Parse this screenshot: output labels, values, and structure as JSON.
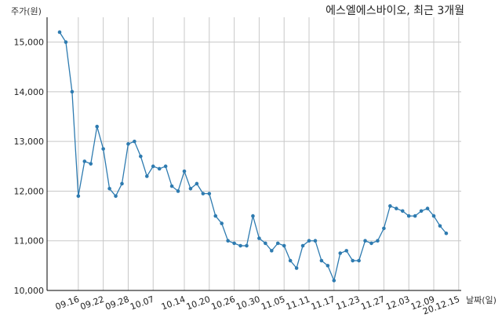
{
  "chart_data": {
    "type": "line",
    "title": "에스엘에스바이오, 최근 3개월",
    "ylabel": "주가(원)",
    "xlabel": "날짜(일)",
    "ylim": [
      10000,
      15500
    ],
    "yticks": [
      10000,
      11000,
      12000,
      13000,
      14000,
      15000
    ],
    "ytick_labels": [
      "10,000",
      "11,000",
      "12,000",
      "13,000",
      "14,000",
      "15,000"
    ],
    "xticks": [
      {
        "label": "09.16",
        "index": 3
      },
      {
        "label": "09.22",
        "index": 7
      },
      {
        "label": "09.28",
        "index": 11
      },
      {
        "label": "10.07",
        "index": 15
      },
      {
        "label": "10.14",
        "index": 20
      },
      {
        "label": "10.20",
        "index": 24
      },
      {
        "label": "10.26",
        "index": 28
      },
      {
        "label": "10.30",
        "index": 32
      },
      {
        "label": "11.05",
        "index": 36
      },
      {
        "label": "11.11",
        "index": 40
      },
      {
        "label": "11.17",
        "index": 44
      },
      {
        "label": "11.23",
        "index": 48
      },
      {
        "label": "11.27",
        "index": 52
      },
      {
        "label": "12.03",
        "index": 56
      },
      {
        "label": "12.09",
        "index": 60
      },
      {
        "label": "20.12.15",
        "index": 64
      }
    ],
    "grid": true,
    "line_color": "#2e7bb0",
    "series": [
      {
        "values": [
          15200,
          15000,
          14000,
          11900,
          12600,
          12550,
          13300,
          12850,
          12050,
          11900,
          12150,
          12950,
          13000,
          12700,
          12300,
          12500,
          12450,
          12500,
          12100,
          12000,
          12400,
          12050,
          12150,
          11950,
          11950,
          11500,
          11350,
          11000,
          10950,
          10900,
          10900,
          11500,
          11050,
          10950,
          10800,
          10950,
          10900,
          10600,
          10450,
          10900,
          11000,
          11000,
          10600,
          10500,
          10200,
          10750,
          10800,
          10600,
          10600,
          11000,
          10950,
          11000,
          11250,
          11700,
          11650,
          11600,
          11500,
          11500,
          11600,
          11650,
          11500,
          11300,
          11150
        ]
      }
    ]
  }
}
